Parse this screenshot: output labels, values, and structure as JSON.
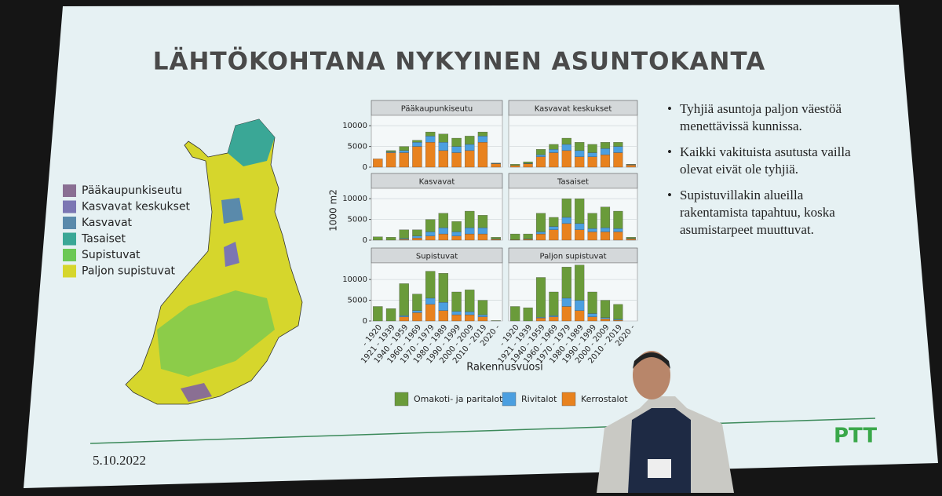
{
  "slide": {
    "title": "LÄHTÖKOHTANA NYKYINEN ASUNTOKANTA",
    "bullets": [
      "Tyhjiä asuntoja paljon väestöä menettävissä kunnissa.",
      "Kaikki vakituista asutusta vailla olevat eivät ole tyhjiä.",
      "Supistuvillakin alueilla rakentamista tapahtuu, koska asumistarpeet muuttuvat."
    ],
    "date": "5.10.2022",
    "logo": "PTT",
    "map_legend": [
      {
        "label": "Pääkaupunkiseutu",
        "color": "#8a6f93"
      },
      {
        "label": "Kasvavat keskukset",
        "color": "#7b76b3"
      },
      {
        "label": "Kasvavat",
        "color": "#5a8aab"
      },
      {
        "label": "Tasaiset",
        "color": "#3aa796"
      },
      {
        "label": "Supistuvat",
        "color": "#6cc855"
      },
      {
        "label": "Paljon supistuvat",
        "color": "#d6d62c"
      }
    ]
  },
  "chart_data": {
    "type": "bar",
    "stacked": true,
    "y_label": "1000 m2",
    "x_label": "Rakennusvuosi",
    "categories": [
      "- 1920",
      "1921 - 1939",
      "1940 - 1959",
      "1960 - 1969",
      "1970 - 1979",
      "1980 - 1989",
      "1990 - 1999",
      "2000 - 2009",
      "2010 - 2019",
      "2020 -"
    ],
    "legend": [
      {
        "name": "Kerrostalot",
        "color": "#e8821e"
      },
      {
        "name": "Rivitalot",
        "color": "#4b9fe0"
      },
      {
        "name": "Omakoti- ja paritalot",
        "color": "#6a9b3a"
      }
    ],
    "grid": true,
    "panels": [
      {
        "title": "Pääkaupunkiseutu",
        "ylim": [
          0,
          12500
        ],
        "yticks": [
          0,
          5000,
          10000
        ],
        "series": [
          {
            "values": [
              2000,
              3500,
              3500,
              5000,
              6000,
              4000,
              3500,
              4000,
              6000,
              800
            ]
          },
          {
            "values": [
              0,
              200,
              500,
              1000,
              1500,
              2000,
              1500,
              1500,
              1500,
              100
            ]
          },
          {
            "values": [
              0,
              300,
              1000,
              500,
              1000,
              2000,
              2000,
              2000,
              1000,
              100
            ]
          }
        ]
      },
      {
        "title": "Kasvavat keskukset",
        "ylim": [
          0,
          12500
        ],
        "series": [
          {
            "values": [
              400,
              800,
              2500,
              3500,
              4000,
              2500,
              2500,
              3000,
              3500,
              500
            ]
          },
          {
            "values": [
              0,
              100,
              500,
              800,
              1500,
              1500,
              1000,
              1500,
              1500,
              100
            ]
          },
          {
            "values": [
              300,
              400,
              1300,
              1200,
              1500,
              2000,
              2000,
              1500,
              1000,
              100
            ]
          }
        ]
      },
      {
        "title": "Kasvavat",
        "ylim": [
          0,
          12500
        ],
        "yticks": [
          0,
          5000,
          10000
        ],
        "series": [
          {
            "values": [
              0,
              0,
              200,
              500,
              1000,
              1500,
              1000,
              1500,
              1500,
              200
            ]
          },
          {
            "values": [
              0,
              0,
              200,
              500,
              1000,
              1500,
              1000,
              1500,
              1500,
              100
            ]
          },
          {
            "values": [
              800,
              700,
              2100,
              1500,
              3000,
              3500,
              2500,
              4000,
              3000,
              400
            ]
          }
        ]
      },
      {
        "title": "Tasaiset",
        "ylim": [
          0,
          12500
        ],
        "series": [
          {
            "values": [
              100,
              200,
              1500,
              2500,
              4000,
              2500,
              2000,
              2000,
              2000,
              300
            ]
          },
          {
            "values": [
              0,
              100,
              500,
              800,
              1500,
              1500,
              800,
              1000,
              800,
              100
            ]
          },
          {
            "values": [
              1400,
              1200,
              4500,
              2200,
              4500,
              6000,
              3700,
              5000,
              4200,
              300
            ]
          }
        ]
      },
      {
        "title": "Supistuvat",
        "ylim": [
          0,
          14000
        ],
        "yticks": [
          0,
          5000,
          10000
        ],
        "series": [
          {
            "values": [
              0,
              0,
              1000,
              2000,
              4000,
              2500,
              1500,
              1500,
              1000,
              0
            ]
          },
          {
            "values": [
              0,
              0,
              300,
              500,
              1500,
              2000,
              800,
              700,
              500,
              0
            ]
          },
          {
            "values": [
              3500,
              3000,
              7700,
              4000,
              6500,
              7000,
              4700,
              5300,
              3500,
              100
            ]
          }
        ]
      },
      {
        "title": "Paljon supistuvat",
        "ylim": [
          0,
          14000
        ],
        "series": [
          {
            "values": [
              0,
              0,
              700,
              1000,
              3500,
              2500,
              1000,
              500,
              200,
              0
            ]
          },
          {
            "values": [
              0,
              0,
              200,
              300,
              2000,
              2500,
              800,
              300,
              200,
              0
            ]
          },
          {
            "values": [
              3500,
              3200,
              9600,
              5700,
              7500,
              8500,
              5200,
              4200,
              3600,
              0
            ]
          }
        ]
      }
    ]
  }
}
